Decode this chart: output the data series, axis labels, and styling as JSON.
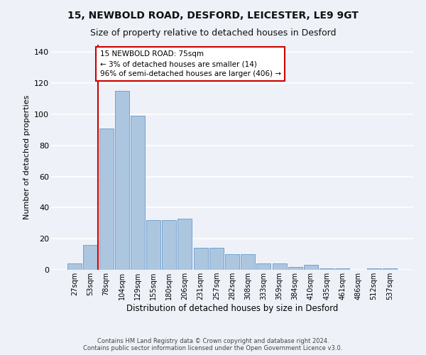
{
  "title1": "15, NEWBOLD ROAD, DESFORD, LEICESTER, LE9 9GT",
  "title2": "Size of property relative to detached houses in Desford",
  "xlabel": "Distribution of detached houses by size in Desford",
  "ylabel": "Number of detached properties",
  "categories": [
    "27sqm",
    "53sqm",
    "78sqm",
    "104sqm",
    "129sqm",
    "155sqm",
    "180sqm",
    "206sqm",
    "231sqm",
    "257sqm",
    "282sqm",
    "308sqm",
    "333sqm",
    "359sqm",
    "384sqm",
    "410sqm",
    "435sqm",
    "461sqm",
    "486sqm",
    "512sqm",
    "537sqm"
  ],
  "values": [
    4,
    16,
    91,
    115,
    99,
    32,
    32,
    33,
    14,
    14,
    10,
    10,
    4,
    4,
    2,
    3,
    1,
    1,
    0,
    1,
    1
  ],
  "bar_color": "#adc6e0",
  "bar_edge_color": "#6699cc",
  "highlight_line_color": "#cc0000",
  "annotation_text": "15 NEWBOLD ROAD: 75sqm\n← 3% of detached houses are smaller (14)\n96% of semi-detached houses are larger (406) →",
  "annotation_box_color": "#ffffff",
  "annotation_box_edge_color": "#cc0000",
  "ylim": [
    0,
    145
  ],
  "yticks": [
    0,
    20,
    40,
    60,
    80,
    100,
    120,
    140
  ],
  "footer1": "Contains HM Land Registry data © Crown copyright and database right 2024.",
  "footer2": "Contains public sector information licensed under the Open Government Licence v3.0.",
  "background_color": "#eef2f8",
  "grid_color": "#ffffff",
  "title1_fontsize": 10,
  "title2_fontsize": 9,
  "xlabel_fontsize": 8.5,
  "ylabel_fontsize": 8
}
